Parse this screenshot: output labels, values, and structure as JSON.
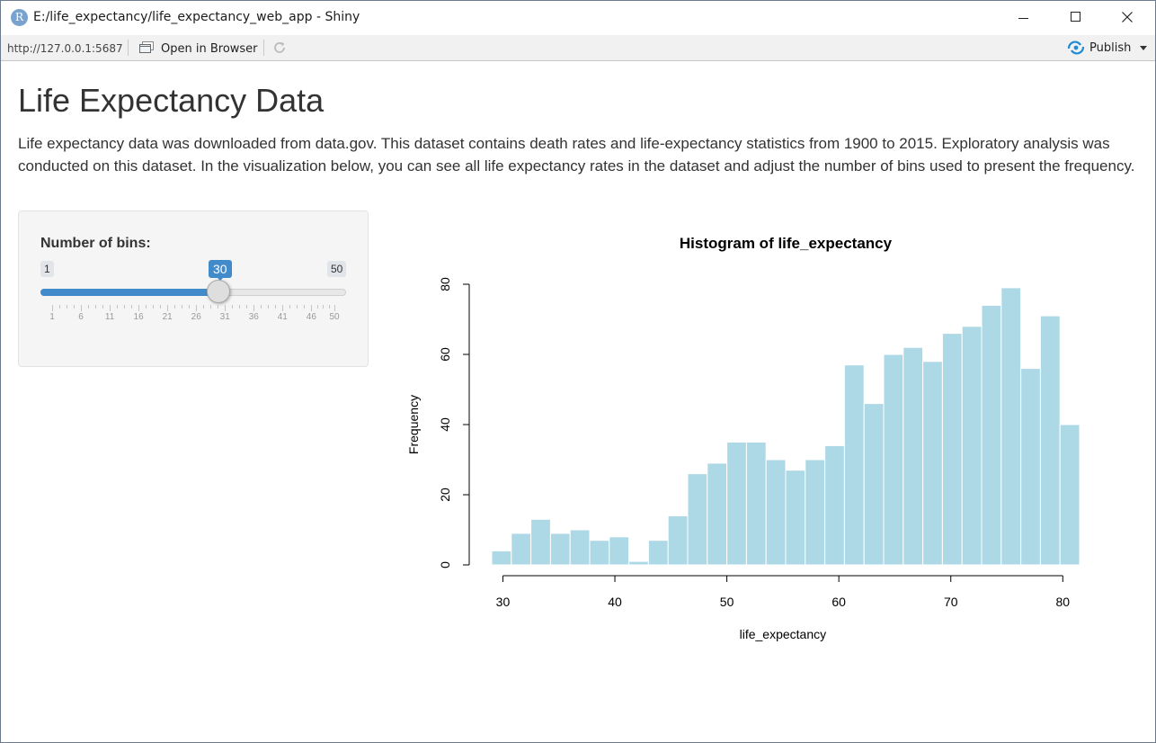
{
  "window": {
    "title": "E:/life_expectancy/life_expectancy_web_app - Shiny",
    "logo_letter": "R"
  },
  "toolbar": {
    "url": "http://127.0.0.1:5687",
    "open_in_browser": "Open in Browser",
    "publish": "Publish",
    "refresh_icon": "refresh-icon"
  },
  "page": {
    "title": "Life Expectancy Data",
    "description": "Life expectancy data was downloaded from data.gov. This dataset contains death rates and life-expectancy statistics from 1900 to 2015. Exploratory analysis was conducted on this dataset. In the visualization below, you can see all life expectancy rates in the dataset and adjust the number of bins used to present the frequency."
  },
  "slider": {
    "label": "Number of bins:",
    "min": 1,
    "max": 50,
    "value": 30,
    "min_label": "1",
    "max_label": "50",
    "value_label": "30",
    "grid_labels": [
      "1",
      "6",
      "11",
      "16",
      "21",
      "26",
      "31",
      "36",
      "41",
      "46",
      "50"
    ],
    "accent_color": "#428bca"
  },
  "chart_data": {
    "type": "bar",
    "title": "Histogram of life_expectancy",
    "xlabel": "life_expectancy",
    "ylabel": "Frequency",
    "xlim": [
      29,
      81.5
    ],
    "ylim": [
      0,
      80
    ],
    "xticks": [
      30,
      40,
      50,
      60,
      70,
      80
    ],
    "yticks": [
      0,
      20,
      40,
      60,
      80
    ],
    "bar_color": "#add8e6",
    "bin_edges": [
      29.0,
      30.75,
      32.5,
      34.25,
      36.0,
      37.75,
      39.5,
      41.25,
      43.0,
      44.75,
      46.5,
      48.25,
      50.0,
      51.75,
      53.5,
      55.25,
      57.0,
      58.75,
      60.5,
      62.25,
      64.0,
      65.75,
      67.5,
      69.25,
      71.0,
      72.75,
      74.5,
      76.25,
      78.0,
      79.75,
      81.5
    ],
    "values": [
      4,
      9,
      13,
      9,
      10,
      7,
      8,
      1,
      7,
      14,
      26,
      29,
      35,
      35,
      30,
      27,
      30,
      34,
      57,
      46,
      60,
      62,
      58,
      66,
      68,
      74,
      79,
      56,
      71,
      40
    ]
  }
}
